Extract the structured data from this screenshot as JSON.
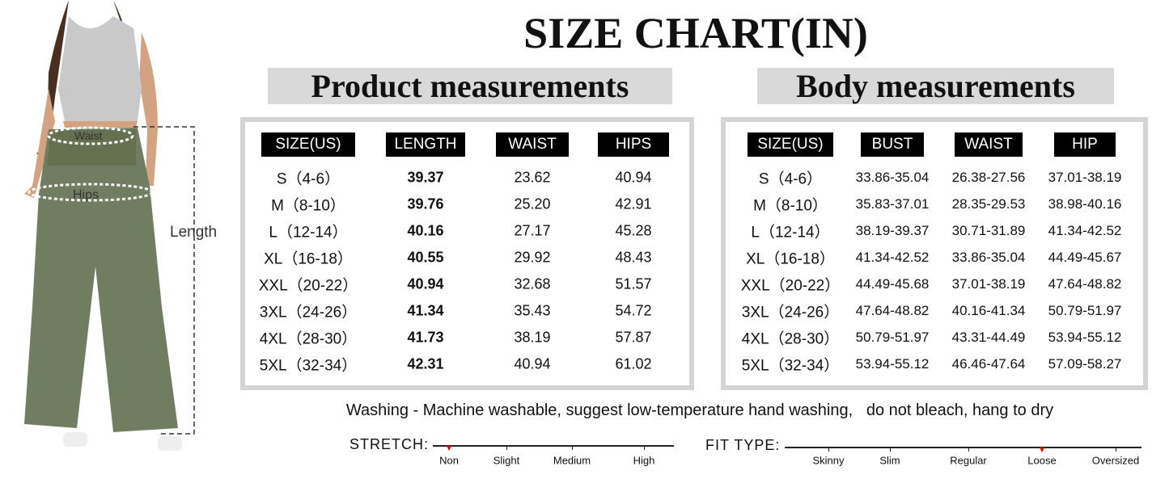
{
  "header": {
    "title": "SIZE CHART(IN)"
  },
  "figure": {
    "waist_label": "Waist",
    "hips_label": "Hips",
    "length_label": "Length"
  },
  "product": {
    "title": "Product measurements",
    "headers": [
      "SIZE(US)",
      "LENGTH",
      "WAIST",
      "HIPS"
    ],
    "rows": [
      [
        "S（4-6）",
        "39.37",
        "23.62",
        "40.94"
      ],
      [
        "M（8-10）",
        "39.76",
        "25.20",
        "42.91"
      ],
      [
        "L（12-14）",
        "40.16",
        "27.17",
        "45.28"
      ],
      [
        "XL（16-18）",
        "40.55",
        "29.92",
        "48.43"
      ],
      [
        "XXL（20-22）",
        "40.94",
        "32.68",
        "51.57"
      ],
      [
        "3XL（24-26）",
        "41.34",
        "35.43",
        "54.72"
      ],
      [
        "4XL（28-30）",
        "41.73",
        "38.19",
        "57.87"
      ],
      [
        "5XL（32-34）",
        "42.31",
        "40.94",
        "61.02"
      ]
    ]
  },
  "body": {
    "title": "Body measurements",
    "headers": [
      "SIZE(US)",
      "BUST",
      "WAIST",
      "HIP"
    ],
    "rows": [
      [
        "S（4-6）",
        "33.86-35.04",
        "26.38-27.56",
        "37.01-38.19"
      ],
      [
        "M（8-10）",
        "35.83-37.01",
        "28.35-29.53",
        "38.98-40.16"
      ],
      [
        "L（12-14）",
        "38.19-39.37",
        "30.71-31.89",
        "41.34-42.52"
      ],
      [
        "XL（16-18）",
        "41.34-42.52",
        "33.86-35.04",
        "44.49-45.67"
      ],
      [
        "XXL（20-22）",
        "44.49-45.68",
        "37.01-38.19",
        "47.64-48.82"
      ],
      [
        "3XL（24-26）",
        "47.64-48.82",
        "40.16-41.34",
        "50.79-51.97"
      ],
      [
        "4XL（28-30）",
        "50.79-51.97",
        "43.31-44.49",
        "53.94-55.12"
      ],
      [
        "5XL（32-34）",
        "53.94-55.12",
        "46.46-47.64",
        "57.09-58.27"
      ]
    ]
  },
  "washing": "Washing - Machine washable, suggest low-temperature hand washing,   do not bleach, hang to dry",
  "stretch": {
    "label": "STRETCH:",
    "options": [
      "Non",
      "Slight",
      "Medium",
      "High"
    ],
    "selected": 0
  },
  "fit_type": {
    "label": "FIT TYPE:",
    "options": [
      "Skinny",
      "Slim",
      "Regular",
      "Loose",
      "Oversized"
    ],
    "selected": 3
  }
}
